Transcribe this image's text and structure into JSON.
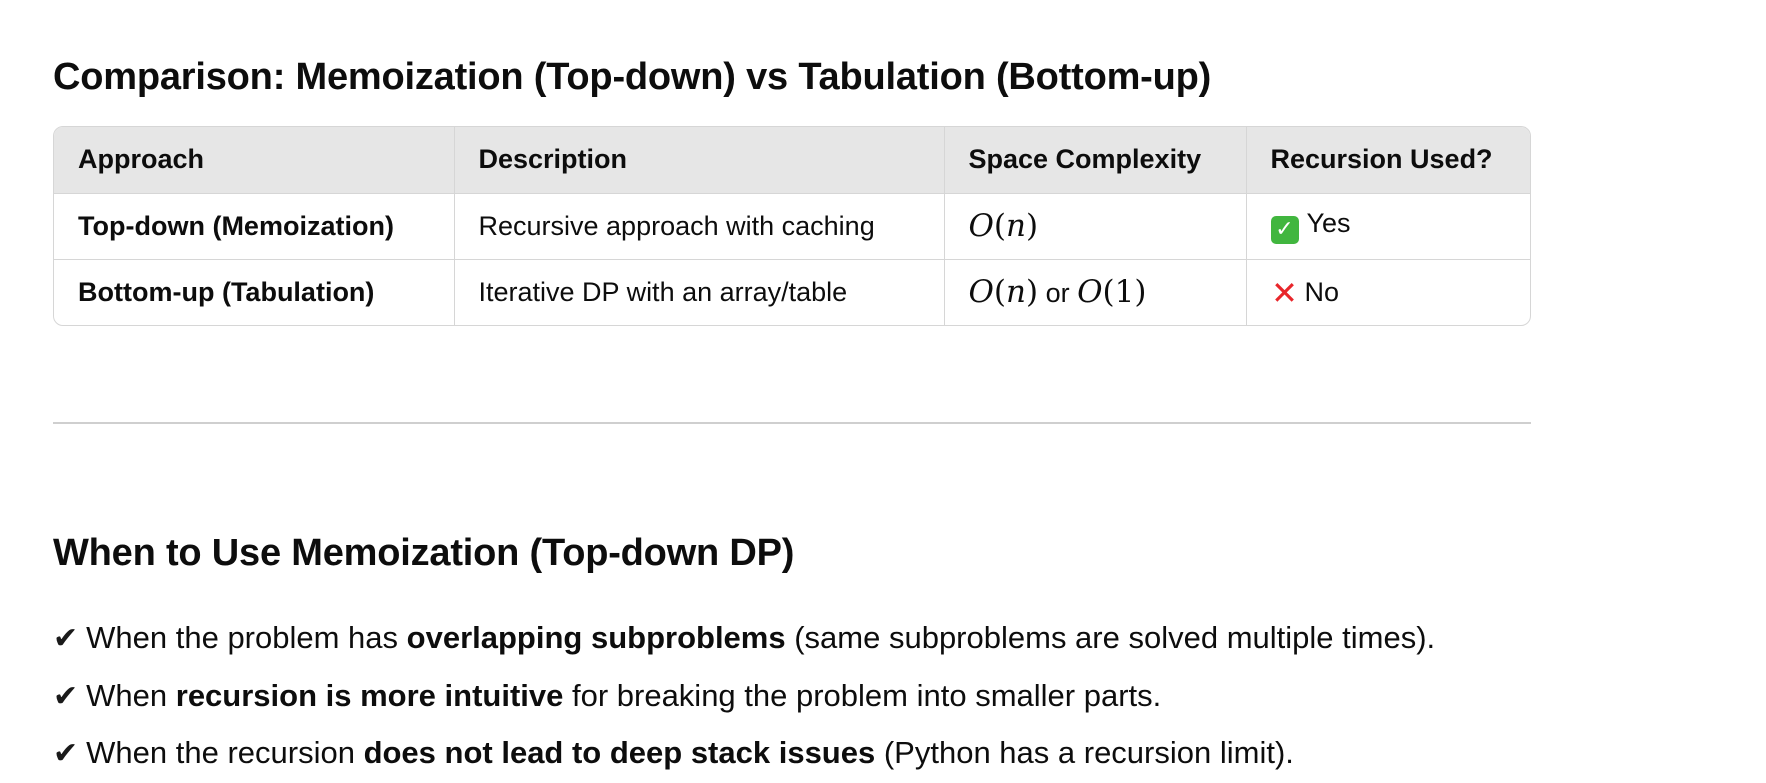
{
  "comparison": {
    "title": "Comparison: Memoization (Top-down) vs Tabulation (Bottom-up)",
    "headers": [
      "Approach",
      "Description",
      "Space Complexity",
      "Recursion Used?"
    ],
    "rows": [
      {
        "approach": "Top-down (Memoization)",
        "description": "Recursive approach with caching",
        "space_complexity": "O(n)",
        "recursion_icon": "check-mark-button-icon",
        "recursion_used": "Yes"
      },
      {
        "approach": "Bottom-up (Tabulation)",
        "description": "Iterative DP with an array/table",
        "space_complexity": "O(n) or O(1)",
        "space_connector": "or",
        "recursion_icon": "cross-mark-icon",
        "recursion_used": "No"
      }
    ]
  },
  "when_to_use": {
    "title": "When to Use Memoization (Top-down DP)",
    "items": [
      {
        "before": "When the problem has ",
        "bold": "overlapping subproblems",
        "after": " (same subproblems are solved multiple times)."
      },
      {
        "before": "When ",
        "bold": "recursion is more intuitive",
        "after": " for breaking the problem into smaller parts."
      },
      {
        "before": "When the recursion ",
        "bold": "does not lead to deep stack issues",
        "after": " (Python has a recursion limit)."
      }
    ]
  },
  "colors": {
    "text": "#0d0d0d",
    "header_bg": "#e6e6e6",
    "border": "#d6d6d6",
    "check_green": "#41b63f",
    "cross_red": "#e8262b"
  }
}
